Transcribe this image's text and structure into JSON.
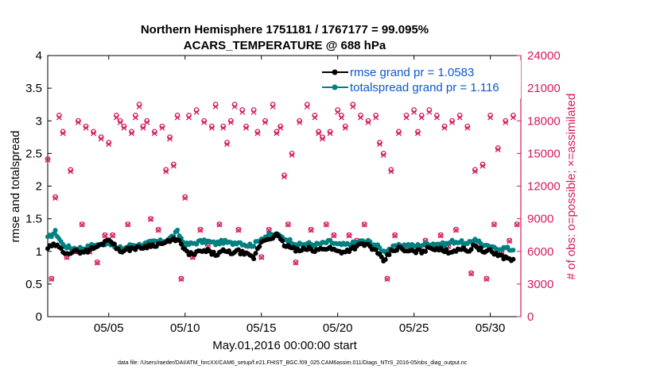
{
  "figure": {
    "footer": "data file: /Users/raeder/DAI/ATM_forcXX/CAM6_setup/f.e21.FHIST_BGC.f09_025.CAM6assim.011/Diags_NTrS_2016-05/obs_diag_output.nc"
  },
  "colors": {
    "rmse": "#000000",
    "spread": "#008080",
    "obs": "#d6185c",
    "legend_text": "#0b57d0"
  },
  "chart_data": {
    "type": "line",
    "title": "Northern Hemisphere 1751181 / 1767177 = 99.095%",
    "subtitle": "ACARS_TEMPERATURE @ 688 hPa",
    "xlabel": "May.01,2016 00:00:00 start",
    "ylabel": "rmse and totalspread",
    "y2label": "# of obs: o=possible; ×=assimilated",
    "xlim": [
      1,
      32
    ],
    "ylim": [
      0,
      4
    ],
    "y2lim": [
      0,
      24000
    ],
    "x_ticks": [
      5,
      10,
      15,
      20,
      25,
      30
    ],
    "x_tick_labels": [
      "05/05",
      "05/10",
      "05/15",
      "05/20",
      "05/25",
      "05/30"
    ],
    "y_ticks": [
      0,
      0.5,
      1,
      1.5,
      2,
      2.5,
      3,
      3.5,
      4
    ],
    "y_tick_labels": [
      "0",
      "0.5",
      "1",
      "1.5",
      "2",
      "2.5",
      "3",
      "3.5",
      "4"
    ],
    "y2_ticks": [
      0,
      3000,
      6000,
      9000,
      12000,
      15000,
      18000,
      21000,
      24000
    ],
    "y2_tick_labels": [
      "0",
      "3000",
      "6000",
      "9000",
      "12000",
      "15000",
      "18000",
      "21000",
      "24000"
    ],
    "grid": false,
    "legend_position": "top-right",
    "series": [
      {
        "name": "rmse grand pr = 1.0583",
        "axis": "left",
        "anchors_x": [
          1.0,
          1.5,
          2.0,
          2.5,
          3.0,
          3.5,
          4.0,
          4.5,
          5.0,
          5.5,
          6.0,
          6.5,
          7.0,
          7.5,
          8.0,
          8.5,
          9.0,
          9.5,
          10.0,
          10.5,
          11.0,
          11.5,
          12.0,
          12.5,
          13.0,
          13.5,
          14.0,
          14.5,
          15.0,
          15.5,
          16.0,
          16.5,
          17.0,
          17.5,
          18.0,
          18.5,
          19.0,
          19.5,
          20.0,
          20.5,
          21.0,
          21.5,
          22.0,
          22.5,
          23.0,
          23.5,
          24.0,
          24.5,
          25.0,
          25.5,
          26.0,
          26.5,
          27.0,
          27.5,
          28.0,
          28.5,
          29.0,
          29.5,
          30.0,
          30.5,
          31.0,
          31.5
        ],
        "anchors_y": [
          1.05,
          1.1,
          1.0,
          0.98,
          1.0,
          1.0,
          1.05,
          1.1,
          1.2,
          1.05,
          1.0,
          1.05,
          1.05,
          1.08,
          1.1,
          1.12,
          1.15,
          1.2,
          1.0,
          0.95,
          1.0,
          1.0,
          0.95,
          1.0,
          0.98,
          1.0,
          0.95,
          0.9,
          1.15,
          1.2,
          1.25,
          1.1,
          1.05,
          1.0,
          1.05,
          1.0,
          1.05,
          1.05,
          1.0,
          1.0,
          1.05,
          1.1,
          1.1,
          1.0,
          0.85,
          1.0,
          1.05,
          1.0,
          1.0,
          1.0,
          1.05,
          1.05,
          1.0,
          1.0,
          1.05,
          1.0,
          1.1,
          1.0,
          1.0,
          0.95,
          0.9,
          0.88
        ]
      },
      {
        "name": "totalspread grand pr = 1.116",
        "axis": "left",
        "anchors_x": [
          1.0,
          1.5,
          2.0,
          2.5,
          3.0,
          3.5,
          4.0,
          4.5,
          5.0,
          5.5,
          6.0,
          6.5,
          7.0,
          7.5,
          8.0,
          8.5,
          9.0,
          9.5,
          10.0,
          10.5,
          11.0,
          11.5,
          12.0,
          12.5,
          13.0,
          13.5,
          14.0,
          14.5,
          15.0,
          15.5,
          16.0,
          16.5,
          17.0,
          17.5,
          18.0,
          18.5,
          19.0,
          19.5,
          20.0,
          20.5,
          21.0,
          21.5,
          22.0,
          22.5,
          23.0,
          23.5,
          24.0,
          24.5,
          25.0,
          25.5,
          26.0,
          26.5,
          27.0,
          27.5,
          28.0,
          28.5,
          29.0,
          29.5,
          30.0,
          30.5,
          31.0,
          31.5
        ],
        "anchors_y": [
          1.2,
          1.3,
          1.1,
          1.05,
          1.05,
          1.05,
          1.1,
          1.1,
          1.15,
          1.05,
          1.05,
          1.1,
          1.1,
          1.12,
          1.15,
          1.15,
          1.2,
          1.3,
          1.1,
          1.12,
          1.15,
          1.15,
          1.12,
          1.15,
          1.12,
          1.15,
          1.1,
          1.1,
          1.2,
          1.25,
          1.25,
          1.2,
          1.15,
          1.1,
          1.12,
          1.1,
          1.12,
          1.15,
          1.1,
          1.1,
          1.12,
          1.15,
          1.15,
          1.1,
          1.0,
          1.05,
          1.08,
          1.1,
          1.08,
          1.1,
          1.12,
          1.12,
          1.1,
          1.15,
          1.15,
          1.1,
          1.2,
          1.1,
          1.05,
          1.05,
          1.05,
          1.02
        ]
      },
      {
        "name": "possible",
        "axis": "right",
        "marker": "o",
        "x": [
          1.0,
          1.25,
          1.5,
          1.75,
          2.0,
          2.25,
          2.5,
          2.75,
          3.0,
          3.25,
          3.5,
          3.75,
          4.0,
          4.25,
          4.5,
          4.75,
          5.0,
          5.25,
          5.5,
          5.75,
          6.0,
          6.25,
          6.5,
          6.75,
          7.0,
          7.25,
          7.5,
          7.75,
          8.0,
          8.25,
          8.5,
          8.75,
          9.0,
          9.25,
          9.5,
          9.75,
          10.0,
          10.25,
          10.5,
          10.75,
          11.0,
          11.25,
          11.5,
          11.75,
          12.0,
          12.25,
          12.5,
          12.75,
          13.0,
          13.25,
          13.5,
          13.75,
          14.0,
          14.25,
          14.5,
          14.75,
          15.0,
          15.25,
          15.5,
          15.75,
          16.0,
          16.25,
          16.5,
          16.75,
          17.0,
          17.25,
          17.5,
          17.75,
          18.0,
          18.25,
          18.5,
          18.75,
          19.0,
          19.25,
          19.5,
          19.75,
          20.0,
          20.25,
          20.5,
          20.75,
          21.0,
          21.25,
          21.5,
          21.75,
          22.0,
          22.25,
          22.5,
          22.75,
          23.0,
          23.25,
          23.5,
          23.75,
          24.0,
          24.25,
          24.5,
          24.75,
          25.0,
          25.25,
          25.5,
          25.75,
          26.0,
          26.25,
          26.5,
          26.75,
          27.0,
          27.25,
          27.5,
          27.75,
          28.0,
          28.25,
          28.5,
          28.75,
          29.0,
          29.25,
          29.5,
          29.75,
          30.0,
          30.25,
          30.5,
          30.75,
          31.0,
          31.25,
          31.5,
          31.75
        ],
        "values": [
          14500,
          3500,
          11000,
          18500,
          17000,
          5500,
          13500,
          6000,
          18000,
          8500,
          17500,
          6000,
          17000,
          5000,
          16500,
          7500,
          16000,
          7500,
          18500,
          18000,
          17500,
          8500,
          17000,
          18500,
          19500,
          17500,
          18000,
          9000,
          17000,
          8000,
          17500,
          13500,
          16500,
          14000,
          18500,
          3500,
          11000,
          18500,
          5500,
          19000,
          8000,
          18000,
          6500,
          17500,
          19500,
          8500,
          17500,
          16000,
          18000,
          19500,
          8000,
          19000,
          17500,
          6500,
          19000,
          17000,
          5500,
          18000,
          8000,
          19500,
          17000,
          17500,
          13000,
          8500,
          15000,
          5000,
          18000,
          6500,
          19500,
          8000,
          18500,
          17000,
          16500,
          8500,
          17000,
          7500,
          19000,
          18500,
          17500,
          7500,
          19500,
          7000,
          18500,
          8500,
          18000,
          6500,
          18500,
          16000,
          15000,
          3500,
          13500,
          7500,
          17000,
          6500,
          18500,
          6500,
          19000,
          17000,
          18500,
          7000,
          19000,
          6500,
          18500,
          7500,
          17500,
          6500,
          18000,
          8000,
          18500,
          6500,
          17500,
          4000,
          13500,
          6500,
          14000,
          3500,
          18500,
          8500,
          15500,
          6000,
          18000,
          7000,
          18500,
          8500
        ]
      },
      {
        "name": "assimilated",
        "axis": "right",
        "marker": "x",
        "x": [
          1.0,
          1.25,
          1.5,
          1.75,
          2.0,
          2.25,
          2.5,
          2.75,
          3.0,
          3.25,
          3.5,
          3.75,
          4.0,
          4.25,
          4.5,
          4.75,
          5.0,
          5.25,
          5.5,
          5.75,
          6.0,
          6.25,
          6.5,
          6.75,
          7.0,
          7.25,
          7.5,
          7.75,
          8.0,
          8.25,
          8.5,
          8.75,
          9.0,
          9.25,
          9.5,
          9.75,
          10.0,
          10.25,
          10.5,
          10.75,
          11.0,
          11.25,
          11.5,
          11.75,
          12.0,
          12.25,
          12.5,
          12.75,
          13.0,
          13.25,
          13.5,
          13.75,
          14.0,
          14.25,
          14.5,
          14.75,
          15.0,
          15.25,
          15.5,
          15.75,
          16.0,
          16.25,
          16.5,
          16.75,
          17.0,
          17.25,
          17.5,
          17.75,
          18.0,
          18.25,
          18.5,
          18.75,
          19.0,
          19.25,
          19.5,
          19.75,
          20.0,
          20.25,
          20.5,
          20.75,
          21.0,
          21.25,
          21.5,
          21.75,
          22.0,
          22.25,
          22.5,
          22.75,
          23.0,
          23.25,
          23.5,
          23.75,
          24.0,
          24.25,
          24.5,
          24.75,
          25.0,
          25.25,
          25.5,
          25.75,
          26.0,
          26.25,
          26.5,
          26.75,
          27.0,
          27.25,
          27.5,
          27.75,
          28.0,
          28.25,
          28.5,
          28.75,
          29.0,
          29.25,
          29.5,
          29.75,
          30.0,
          30.25,
          30.5,
          30.75,
          31.0,
          31.25,
          31.5,
          31.75
        ],
        "values": [
          14400,
          3450,
          10900,
          18300,
          16850,
          5450,
          13350,
          5950,
          17850,
          8450,
          17350,
          5950,
          16850,
          4950,
          16350,
          7450,
          15850,
          7450,
          18300,
          17850,
          17350,
          8450,
          16850,
          18300,
          19300,
          17350,
          17850,
          8950,
          16850,
          7950,
          17350,
          13350,
          16350,
          13850,
          18300,
          3450,
          10900,
          18300,
          5450,
          18800,
          7950,
          17850,
          6450,
          17350,
          19300,
          8450,
          17350,
          15850,
          17850,
          19300,
          7950,
          18800,
          17350,
          6450,
          18800,
          16850,
          5450,
          17850,
          7950,
          19300,
          16850,
          17350,
          12850,
          8450,
          14850,
          4950,
          17850,
          6450,
          19300,
          7950,
          18300,
          16850,
          16350,
          8450,
          16850,
          7450,
          18800,
          18300,
          17350,
          7450,
          19300,
          6950,
          18300,
          8450,
          17850,
          6450,
          18300,
          15850,
          14850,
          3450,
          13350,
          7450,
          16850,
          6450,
          18300,
          6450,
          18800,
          16850,
          18300,
          6950,
          18800,
          6450,
          18300,
          7450,
          17350,
          6450,
          17850,
          7950,
          18300,
          6450,
          17350,
          3950,
          13350,
          6450,
          13850,
          3450,
          18300,
          8450,
          15350,
          5950,
          17850,
          6950,
          18300,
          8450
        ]
      }
    ]
  }
}
